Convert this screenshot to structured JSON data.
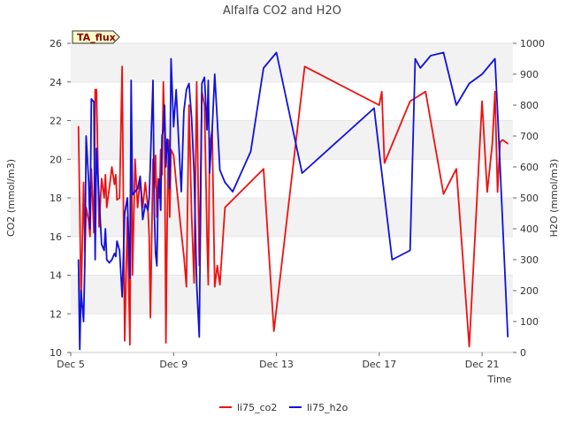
{
  "chart_data": {
    "type": "line",
    "title": "Alfalfa CO2 and H2O",
    "badge": "TA_flux",
    "xlabel": "Time",
    "ylabel_left": "CO2 (mmol/m3)",
    "ylabel_right": "H2O (mmol/m3)",
    "xlim": [
      "Dec 5",
      "Dec 22.2"
    ],
    "ylim_left": [
      10,
      26
    ],
    "ylim_right": [
      0,
      1000
    ],
    "x_ticks": [
      "Dec 5",
      "Dec 9",
      "Dec 13",
      "Dec 17",
      "Dec 21"
    ],
    "y_ticks_left": [
      10,
      12,
      14,
      16,
      18,
      20,
      22,
      24,
      26
    ],
    "y_ticks_right": [
      0,
      100,
      200,
      300,
      400,
      500,
      600,
      700,
      800,
      900,
      1000
    ],
    "grid": "horizontal bands",
    "legend_position": "bottom-center",
    "colors": {
      "li75_co2": "#ee1111",
      "li75_h2o": "#1111dd",
      "band": "#f2f2f2",
      "badge_bg": "#ffffcc"
    },
    "series": [
      {
        "name": "li75_co2",
        "axis": "left",
        "x_day_of_december": [
          5.3,
          5.35,
          5.4,
          5.5,
          5.55,
          5.6,
          5.7,
          5.75,
          5.8,
          5.9,
          5.95,
          6.0,
          6.1,
          6.2,
          6.3,
          6.35,
          6.4,
          6.5,
          6.6,
          6.7,
          6.75,
          6.8,
          6.9,
          7.0,
          7.1,
          7.2,
          7.3,
          7.35,
          7.4,
          7.5,
          7.6,
          7.7,
          7.8,
          7.9,
          8.0,
          8.05,
          8.1,
          8.2,
          8.25,
          8.3,
          8.35,
          8.4,
          8.45,
          8.5,
          8.55,
          8.6,
          8.65,
          8.7,
          8.75,
          8.8,
          8.85,
          8.9,
          9.0,
          9.1,
          9.2,
          9.3,
          9.4,
          9.5,
          9.6,
          9.7,
          9.8,
          9.9,
          10.0,
          10.1,
          10.2,
          10.3,
          10.35,
          10.4,
          10.5,
          10.6,
          10.7,
          10.8,
          11.0,
          12.5,
          12.9,
          14.1,
          17.0,
          17.1,
          17.2,
          18.2,
          18.8,
          19.5,
          20.0,
          20.5,
          21.0,
          21.2,
          21.4,
          21.5,
          21.6,
          21.7,
          21.8,
          22.0
        ],
        "values": [
          21.7,
          17.5,
          12.5,
          18.8,
          15.2,
          17.5,
          16.8,
          16.0,
          19.5,
          16.2,
          23.6,
          23.6,
          16.5,
          19.0,
          18.0,
          19.2,
          17.5,
          18.5,
          19.6,
          18.7,
          19.2,
          17.9,
          18.0,
          24.8,
          10.6,
          17.0,
          10.4,
          22.5,
          14.0,
          20.0,
          17.5,
          19.0,
          17.5,
          18.8,
          17.5,
          16.0,
          11.8,
          20.0,
          18.5,
          20.2,
          17.0,
          19.0,
          18.0,
          20.5,
          19.2,
          24.0,
          21.5,
          10.5,
          16.5,
          21.0,
          17.0,
          20.5,
          20.2,
          18.8,
          17.5,
          16.2,
          15.0,
          13.4,
          22.8,
          17.2,
          13.6,
          24.0,
          14.5,
          23.5,
          22.8,
          16.0,
          13.5,
          20.7,
          21.5,
          13.4,
          14.5,
          13.5,
          17.5,
          19.5,
          11.1,
          24.8,
          22.8,
          23.5,
          19.8,
          23.0,
          23.5,
          18.2,
          19.5,
          10.3,
          23.0,
          18.3,
          20.8,
          23.5,
          18.3,
          20.9,
          21.0,
          20.8
        ]
      },
      {
        "name": "li75_h2o",
        "axis": "right",
        "x_day_of_december": [
          5.3,
          5.35,
          5.4,
          5.5,
          5.55,
          5.6,
          5.7,
          5.75,
          5.8,
          5.9,
          5.95,
          6.0,
          6.1,
          6.2,
          6.3,
          6.35,
          6.4,
          6.5,
          6.6,
          6.7,
          6.75,
          6.8,
          6.9,
          7.0,
          7.1,
          7.2,
          7.3,
          7.35,
          7.4,
          7.5,
          7.6,
          7.7,
          7.8,
          7.9,
          8.0,
          8.05,
          8.1,
          8.2,
          8.25,
          8.3,
          8.35,
          8.4,
          8.45,
          8.5,
          8.55,
          8.6,
          8.65,
          8.7,
          8.75,
          8.8,
          8.85,
          8.9,
          9.0,
          9.1,
          9.2,
          9.3,
          9.4,
          9.5,
          9.6,
          9.7,
          9.8,
          9.9,
          10.0,
          10.1,
          10.2,
          10.3,
          10.35,
          10.4,
          10.5,
          10.6,
          10.7,
          10.8,
          11.0,
          11.3,
          12.0,
          12.5,
          13.0,
          14.0,
          16.8,
          17.0,
          17.5,
          18.2,
          18.4,
          18.6,
          19.0,
          19.5,
          20.0,
          20.5,
          21.0,
          21.5,
          21.6,
          21.7,
          22.0
        ],
        "values": [
          300,
          10,
          200,
          100,
          300,
          700,
          550,
          400,
          820,
          810,
          300,
          660,
          500,
          350,
          330,
          400,
          300,
          290,
          300,
          320,
          310,
          360,
          330,
          180,
          450,
          500,
          240,
          880,
          510,
          520,
          530,
          570,
          430,
          480,
          460,
          500,
          620,
          880,
          450,
          320,
          280,
          520,
          560,
          460,
          700,
          720,
          800,
          600,
          690,
          640,
          530,
          950,
          730,
          850,
          680,
          520,
          780,
          850,
          870,
          760,
          580,
          220,
          50,
          870,
          890,
          720,
          880,
          580,
          720,
          900,
          750,
          590,
          550,
          520,
          650,
          920,
          970,
          580,
          790,
          650,
          300,
          330,
          950,
          920,
          960,
          970,
          800,
          870,
          900,
          950,
          780,
          600,
          50
        ]
      }
    ]
  },
  "legend": {
    "items": [
      {
        "label": "li75_co2",
        "color": "#ee1111"
      },
      {
        "label": "li75_h2o",
        "color": "#1111dd"
      }
    ]
  }
}
